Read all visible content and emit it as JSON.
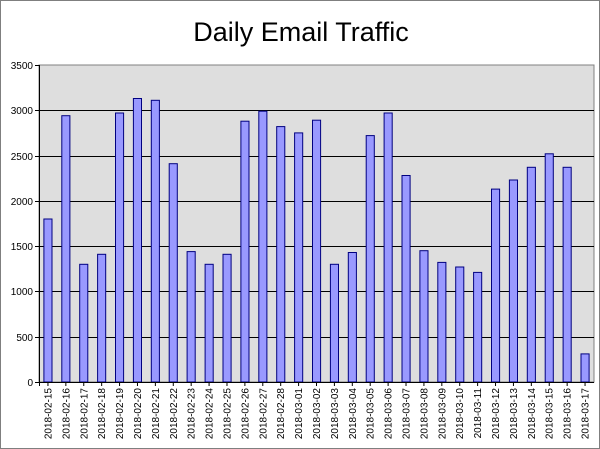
{
  "chart_data": {
    "type": "bar",
    "title": "Daily Email Traffic",
    "xlabel": "",
    "ylabel": "",
    "ylim": [
      0,
      3500
    ],
    "yticks": [
      0,
      500,
      1000,
      1500,
      2000,
      2500,
      3000,
      3500
    ],
    "grid": true,
    "legend": "none",
    "categories": [
      "2018-02-15",
      "2018-02-16",
      "2018-02-17",
      "2018-02-18",
      "2018-02-19",
      "2018-02-20",
      "2018-02-21",
      "2018-02-22",
      "2018-02-23",
      "2018-02-24",
      "2018-02-25",
      "2018-02-26",
      "2018-02-27",
      "2018-02-28",
      "2018-03-01",
      "2018-03-02",
      "2018-03-03",
      "2018-03-04",
      "2018-03-05",
      "2018-03-06",
      "2018-03-07",
      "2018-03-08",
      "2018-03-09",
      "2018-03-10",
      "2018-03-11",
      "2018-03-12",
      "2018-03-13",
      "2018-03-14",
      "2018-03-15",
      "2018-03-16",
      "2018-03-17"
    ],
    "values": [
      1800,
      2940,
      1300,
      1410,
      2970,
      3130,
      3110,
      2410,
      1440,
      1300,
      1410,
      2880,
      2990,
      2820,
      2750,
      2890,
      1300,
      1430,
      2720,
      2970,
      2280,
      1450,
      1320,
      1270,
      1210,
      2130,
      2230,
      2370,
      2520,
      2370,
      310
    ],
    "colors": {
      "bar_fill": "#9999ff",
      "bar_stroke": "#000080",
      "plot_bg": "#dedede",
      "grid": "#000000"
    }
  }
}
